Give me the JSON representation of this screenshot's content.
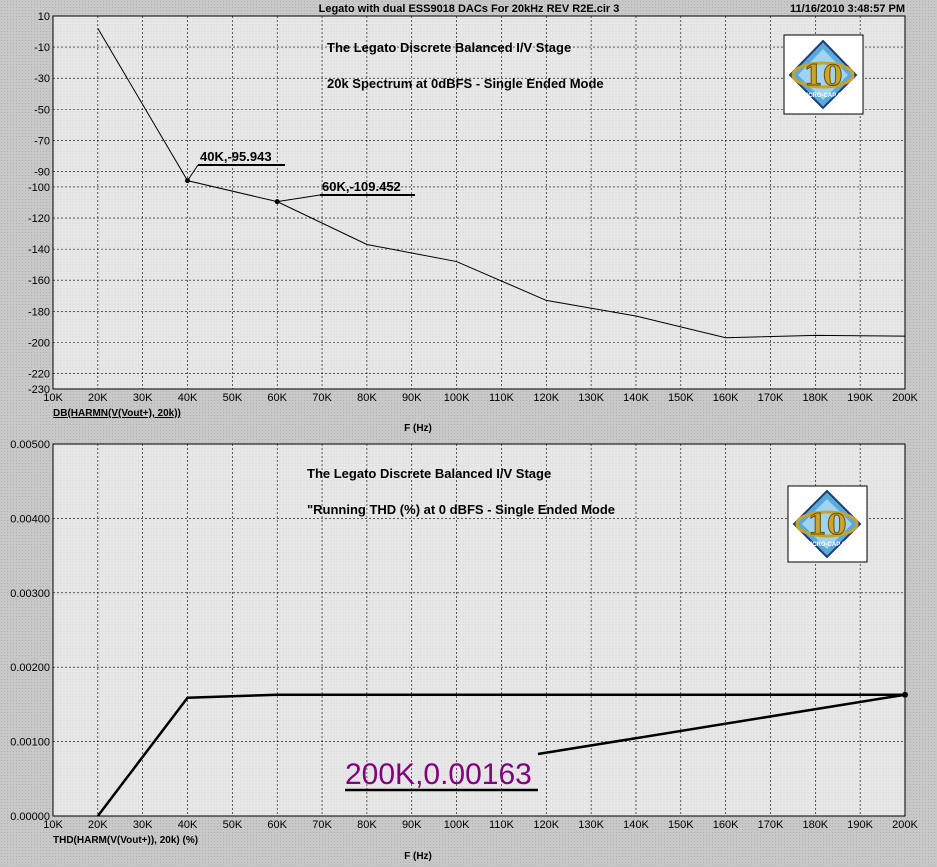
{
  "header": {
    "title": "Legato with dual ESS9018 DACs For 20kHz REV R2E.cir 3",
    "timestamp": "11/16/2010 3:48:57 PM"
  },
  "chart_data": [
    {
      "type": "line",
      "annotations": [
        "The Legato Discrete Balanced I/V Stage",
        "20k Spectrum at 0dBFS - Single Ended Mode"
      ],
      "xlabel": "F (Hz)",
      "ylabel": "DB(HARMN(V(Vout+), 20k))",
      "xlim": [
        10000,
        200000
      ],
      "ylim": [
        -230,
        10
      ],
      "x_ticks": [
        10000,
        20000,
        30000,
        40000,
        50000,
        60000,
        70000,
        80000,
        90000,
        100000,
        110000,
        120000,
        130000,
        140000,
        150000,
        160000,
        170000,
        180000,
        190000,
        200000
      ],
      "x_tick_labels": [
        "10K",
        "20K",
        "30K",
        "40K",
        "50K",
        "60K",
        "70K",
        "80K",
        "90K",
        "100K",
        "110K",
        "120K",
        "130K",
        "140K",
        "150K",
        "160K",
        "170K",
        "180K",
        "190K",
        "200K"
      ],
      "y_ticks": [
        10,
        -10,
        -30,
        -50,
        -70,
        -90,
        -100,
        -120,
        -140,
        -160,
        -180,
        -200,
        -220,
        -230
      ],
      "y_tick_labels": [
        "10",
        "-10",
        "-30",
        "-50",
        "-70",
        "-90",
        "-100",
        "-120",
        "-140",
        "-160",
        "-180",
        "-200",
        "-220",
        "-230"
      ],
      "grid": true,
      "series": [
        {
          "x": [
            20000,
            40000,
            60000,
            80000,
            100000,
            120000,
            140000,
            160000,
            180000,
            200000
          ],
          "y": [
            2,
            -95.943,
            -109.452,
            -137,
            -148,
            -173,
            -183,
            -197,
            -195.5,
            -196
          ]
        }
      ],
      "markers": [
        {
          "x": 40000,
          "y": -95.943,
          "label": "40K,-95.943"
        },
        {
          "x": 60000,
          "y": -109.452,
          "label": "60K,-109.452"
        }
      ]
    },
    {
      "type": "line",
      "annotations": [
        "The Legato Discrete Balanced I/V Stage",
        "\"Running THD (%) at 0 dBFS - Single Ended Mode"
      ],
      "xlabel": "F (Hz)",
      "ylabel": "THD(HARM(V(Vout+)), 20k) (%)",
      "xlim": [
        10000,
        200000
      ],
      "ylim": [
        0,
        0.005
      ],
      "x_ticks": [
        10000,
        20000,
        30000,
        40000,
        50000,
        60000,
        70000,
        80000,
        90000,
        100000,
        110000,
        120000,
        130000,
        140000,
        150000,
        160000,
        170000,
        180000,
        190000,
        200000
      ],
      "x_tick_labels": [
        "10K",
        "20K",
        "30K",
        "40K",
        "50K",
        "60K",
        "70K",
        "80K",
        "90K",
        "100K",
        "110K",
        "120K",
        "130K",
        "140K",
        "150K",
        "160K",
        "170K",
        "180K",
        "190K",
        "200K"
      ],
      "y_ticks": [
        0.005,
        0.004,
        0.003,
        0.002,
        0.001,
        0
      ],
      "y_tick_labels": [
        "0.00500",
        "0.00400",
        "0.00300",
        "0.00200",
        "0.00100",
        "0.00000"
      ],
      "grid": true,
      "series": [
        {
          "x": [
            20000,
            40000,
            60000,
            100000,
            200000
          ],
          "y": [
            0,
            0.00159,
            0.00163,
            0.00163,
            0.00163
          ]
        }
      ],
      "markers": [
        {
          "x": 200000,
          "y": 0.00163,
          "label": "200K,0.00163"
        }
      ]
    }
  ],
  "logo": {
    "text": "10",
    "caption": "MICRO-CAP 10"
  }
}
